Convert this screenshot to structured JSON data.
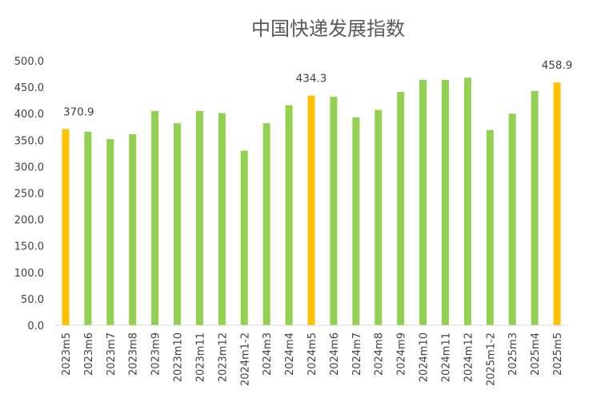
{
  "chart_data": {
    "type": "bar",
    "title": "中国快递发展指数",
    "xlabel": "",
    "ylabel": "",
    "ylim": [
      0,
      500
    ],
    "yticks": [
      "0.0",
      "50.0",
      "100.0",
      "150.0",
      "200.0",
      "250.0",
      "300.0",
      "350.0",
      "400.0",
      "450.0",
      "500.0"
    ],
    "grid": false,
    "legend": "none",
    "categories": [
      "2023m5",
      "2023m6",
      "2023m7",
      "2023m8",
      "2023m9",
      "2023m10",
      "2023m11",
      "2023m12",
      "2024m1-2",
      "2024m3",
      "2024m4",
      "2024m5",
      "2024m6",
      "2024m7",
      "2024m8",
      "2024m9",
      "2024m10",
      "2024m11",
      "2024m12",
      "2025m1-2",
      "2025m3",
      "2025m4",
      "2025m5"
    ],
    "values": [
      370.9,
      366,
      352,
      361,
      405,
      382,
      405,
      401,
      330,
      382,
      416,
      434.3,
      432,
      393,
      407,
      441,
      464,
      464,
      468,
      369,
      400,
      443,
      458.9
    ],
    "highlight_indices": [
      0,
      11,
      22
    ],
    "data_labels": [
      {
        "index": 0,
        "text": "370.9"
      },
      {
        "index": 11,
        "text": "434.3"
      },
      {
        "index": 22,
        "text": "458.9"
      }
    ],
    "colors": {
      "normal": "#92d050",
      "highlight": "#ffc000",
      "axis": "#d9d9d9",
      "text": "#404040",
      "title": "#595959"
    }
  }
}
